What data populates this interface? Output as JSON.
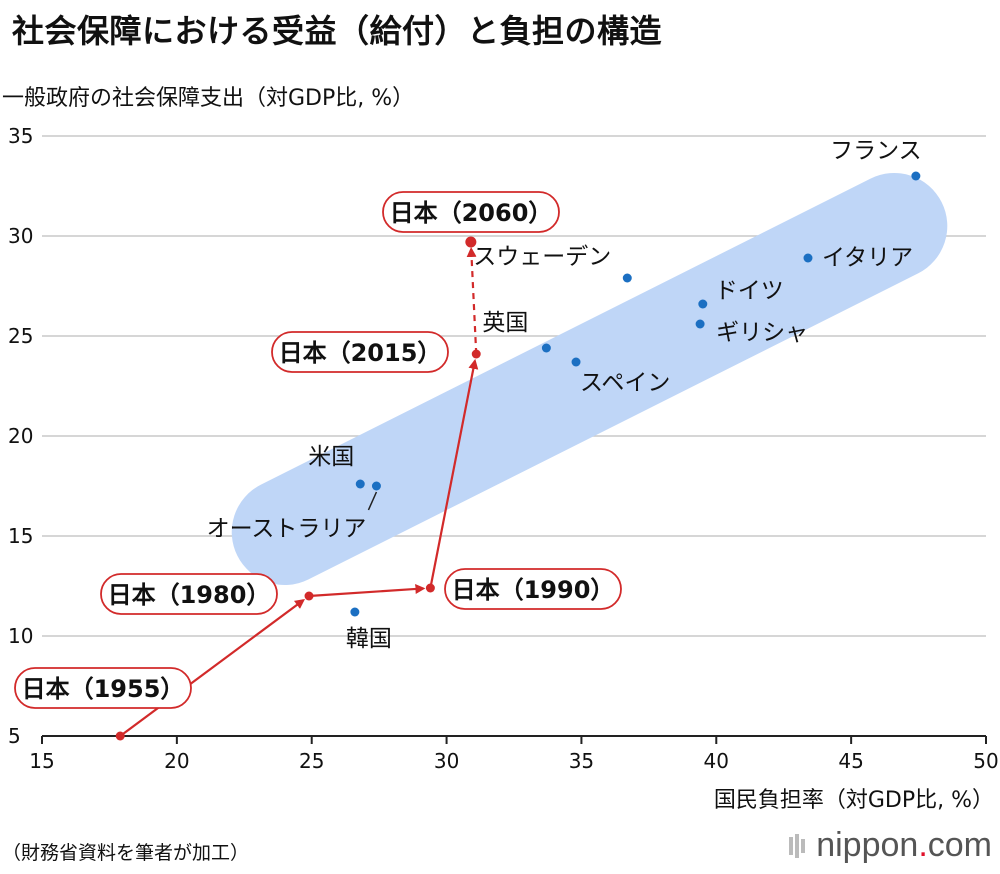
{
  "title": "社会保障における受益（給付）と負担の構造",
  "source": "（財務省資料を筆者が加工）",
  "brand": {
    "name": "nippon",
    "dot": ".",
    "tld": "com"
  },
  "chart_data": {
    "type": "scatter",
    "ylabel": "一般政府の社会保障支出（対GDP比, %）",
    "xlabel": "国民負担率（対GDP比, %）",
    "xlim": [
      15,
      50
    ],
    "ylim": [
      5,
      35
    ],
    "xticks": [
      15,
      20,
      25,
      30,
      35,
      40,
      45,
      50
    ],
    "yticks": [
      5,
      10,
      15,
      20,
      25,
      30,
      35
    ],
    "grid": "horizontal",
    "countries": [
      {
        "name": "フランス",
        "x": 47.4,
        "y": 33.0
      },
      {
        "name": "イタリア",
        "x": 43.4,
        "y": 28.9
      },
      {
        "name": "スウェーデン",
        "x": 36.7,
        "y": 27.9
      },
      {
        "name": "ドイツ",
        "x": 39.5,
        "y": 26.6
      },
      {
        "name": "ギリシャ",
        "x": 39.4,
        "y": 25.6
      },
      {
        "name": "英国",
        "x": 33.7,
        "y": 24.4
      },
      {
        "name": "スペイン",
        "x": 34.8,
        "y": 23.7
      },
      {
        "name": "米国",
        "x": 26.8,
        "y": 17.6
      },
      {
        "name": "オーストラリア",
        "x": 27.4,
        "y": 17.5
      },
      {
        "name": "韓国",
        "x": 26.6,
        "y": 11.2
      }
    ],
    "japan": [
      {
        "label": "日本（1955）",
        "x": 17.9,
        "y": 5.0
      },
      {
        "label": "日本（1980）",
        "x": 24.9,
        "y": 12.0
      },
      {
        "label": "日本（1990）",
        "x": 29.4,
        "y": 12.4
      },
      {
        "label": "日本（2015）",
        "x": 31.1,
        "y": 24.1
      },
      {
        "label": "日本（2060）",
        "x": 30.9,
        "y": 29.7
      }
    ],
    "colors": {
      "country": "#1b6fc2",
      "japan": "#d22a2a",
      "band": "#bfd6f7",
      "grid": "#c8c8c8"
    }
  }
}
